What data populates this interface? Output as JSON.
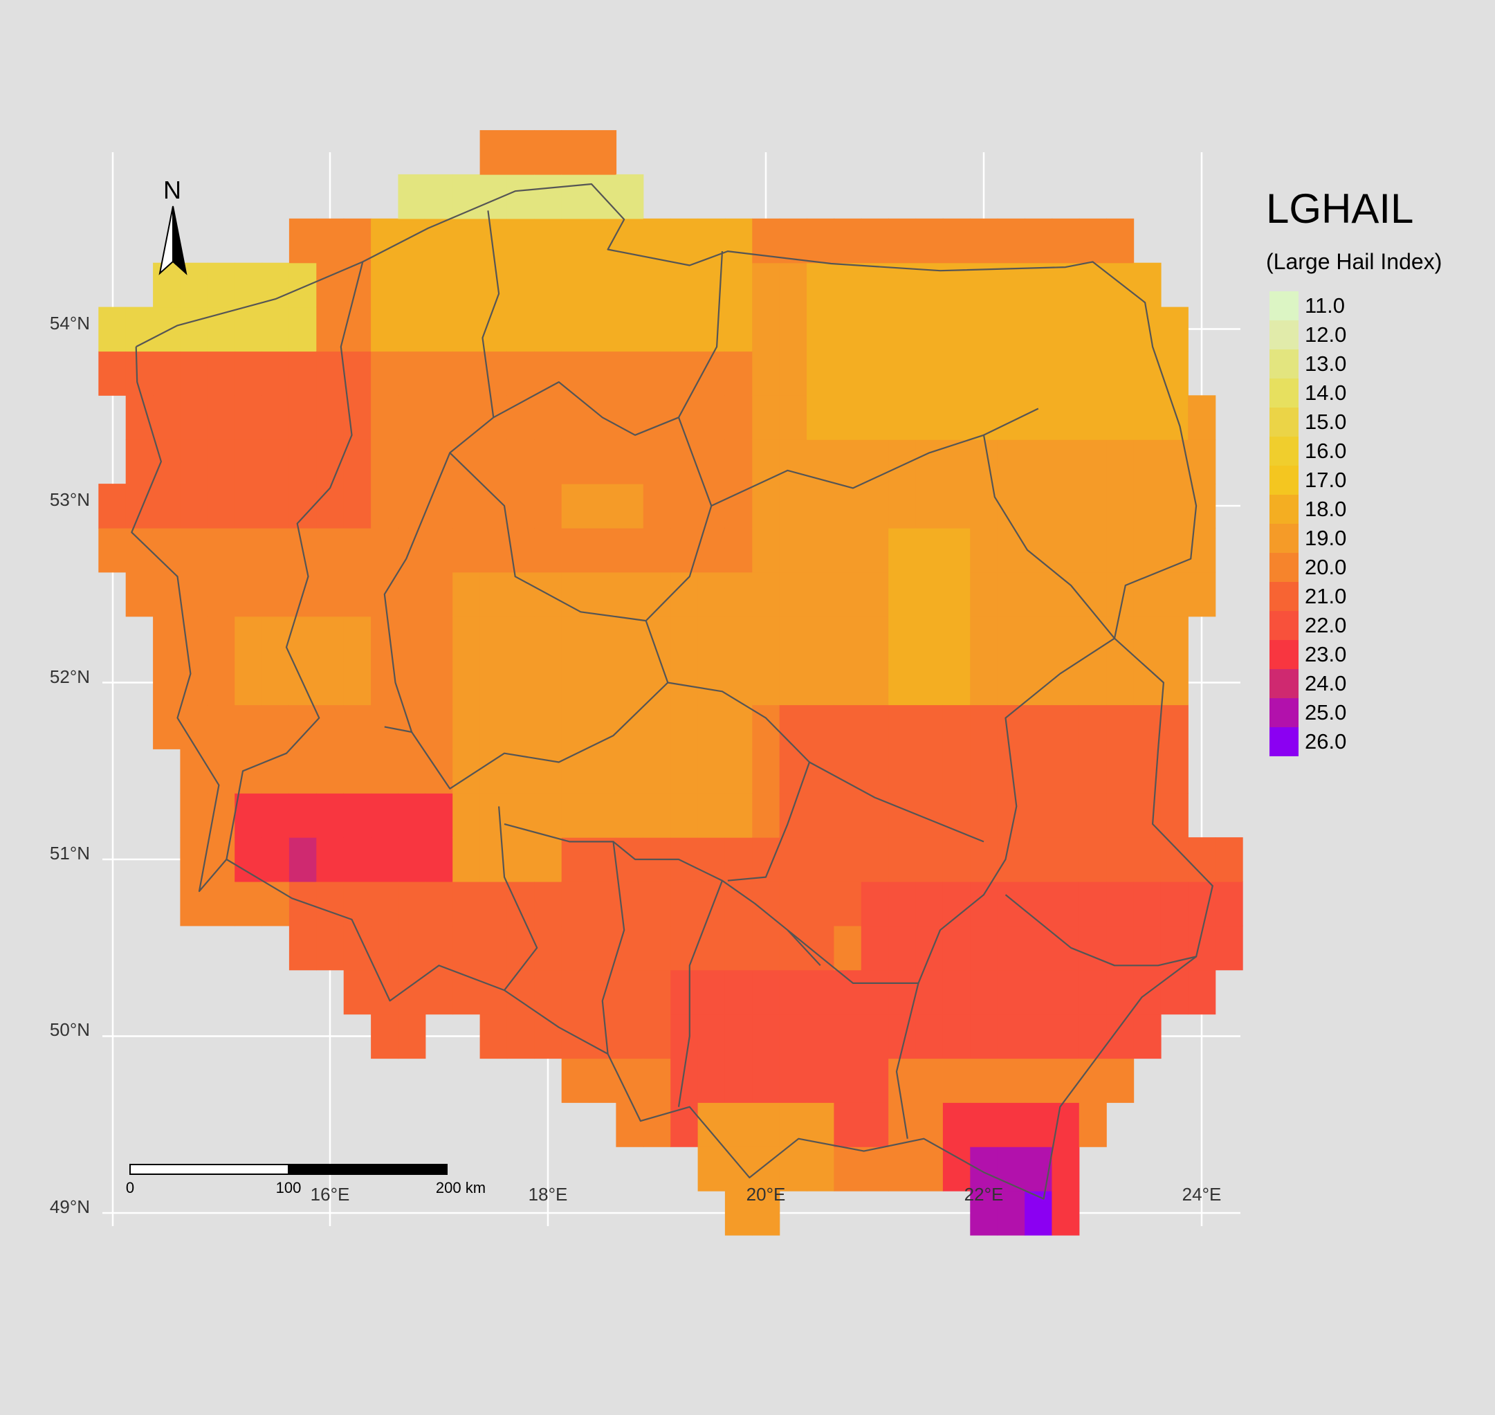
{
  "map": {
    "type": "raster-grid-map",
    "region": "Poland",
    "lon_range": [
      14.0,
      24.3
    ],
    "lat_range": [
      49.0,
      54.9
    ],
    "cell_size_deg": {
      "lon": 0.25,
      "lat": 0.25
    },
    "gridlines": true,
    "background_color": "#e0e0e0",
    "x_ticks": [
      "16°E",
      "18°E",
      "20°E",
      "22°E",
      "24°E"
    ],
    "y_ticks": [
      "54°N",
      "53°N",
      "52°N",
      "51°N",
      "50°N",
      "49°N"
    ],
    "north_arrow": {
      "label": "N"
    },
    "scale_bar": {
      "labels": [
        "0",
        "100",
        "200 km"
      ]
    },
    "legend": {
      "title": "LGHAIL",
      "subtitle": "(Large Hail Index)",
      "placement": "right",
      "entries": [
        {
          "label": "11.0",
          "color": "#dcf5c4"
        },
        {
          "label": "12.0",
          "color": "#e1ebaa"
        },
        {
          "label": "13.0",
          "color": "#e3e57f"
        },
        {
          "label": "14.0",
          "color": "#e7e05f"
        },
        {
          "label": "15.0",
          "color": "#ebd447"
        },
        {
          "label": "16.0",
          "color": "#f0ce2d"
        },
        {
          "label": "17.0",
          "color": "#f4c620"
        },
        {
          "label": "18.0",
          "color": "#f4ae22"
        },
        {
          "label": "19.0",
          "color": "#f59b28"
        },
        {
          "label": "20.0",
          "color": "#f6842c"
        },
        {
          "label": "21.0",
          "color": "#f76433"
        },
        {
          "label": "22.0",
          "color": "#f8513b"
        },
        {
          "label": "23.0",
          "color": "#f83640"
        },
        {
          "label": "24.0",
          "color": "#cf2970"
        },
        {
          "label": "25.0",
          "color": "#b211ac"
        },
        {
          "label": "26.0",
          "color": "#8b00f2"
        }
      ]
    },
    "region_fields": [
      {
        "lon": [
          14.0,
          16.0
        ],
        "lat": [
          54.0,
          54.5
        ],
        "value": 14.5
      },
      {
        "lon": [
          14.0,
          16.4
        ],
        "lat": [
          53.0,
          54.0
        ],
        "value": 21.2
      },
      {
        "lon": [
          14.1,
          16.4
        ],
        "lat": [
          51.0,
          53.0
        ],
        "value": 20.0
      },
      {
        "lon": [
          15.2,
          16.5
        ],
        "lat": [
          52.0,
          52.4
        ],
        "value": 19.0
      },
      {
        "lon": [
          15.2,
          17.5
        ],
        "lat": [
          50.9,
          51.3
        ],
        "value": 22.5
      },
      {
        "lon": [
          15.6,
          15.9
        ],
        "lat": [
          50.9,
          51.2
        ],
        "value": 24.0
      },
      {
        "lon": [
          15.6,
          18.6
        ],
        "lat": [
          50.0,
          51.0
        ],
        "value": 21.0
      },
      {
        "lon": [
          16.4,
          19.0
        ],
        "lat": [
          52.0,
          54.0
        ],
        "value": 20.0
      },
      {
        "lon": [
          17.8,
          19.2
        ],
        "lat": [
          52.0,
          53.8
        ],
        "value": 20.4
      },
      {
        "lon": [
          18.2,
          19.0
        ],
        "lat": [
          52.9,
          53.2
        ],
        "value": 19.0
      },
      {
        "lon": [
          16.5,
          20.0
        ],
        "lat": [
          54.0,
          54.8
        ],
        "value": 17.5
      },
      {
        "lon": [
          16.5,
          19.0
        ],
        "lat": [
          54.6,
          54.9
        ],
        "value": 12.8
      },
      {
        "lon": [
          17.2,
          19.8
        ],
        "lat": [
          51.0,
          52.6
        ],
        "value": 19.2
      },
      {
        "lon": [
          18.2,
          20.6
        ],
        "lat": [
          50.0,
          51.2
        ],
        "value": 20.6
      },
      {
        "lon": [
          19.2,
          21.2
        ],
        "lat": [
          49.3,
          50.3
        ],
        "value": 21.8
      },
      {
        "lon": [
          19.4,
          20.6
        ],
        "lat": [
          49.0,
          49.6
        ],
        "value": 18.5
      },
      {
        "lon": [
          19.8,
          24.3
        ],
        "lat": [
          52.0,
          54.5
        ],
        "value": 18.9
      },
      {
        "lon": [
          21.2,
          21.8
        ],
        "lat": [
          52.0,
          52.9
        ],
        "value": 18.0
      },
      {
        "lon": [
          20.5,
          23.9
        ],
        "lat": [
          53.3,
          54.5
        ],
        "value": 18.0
      },
      {
        "lon": [
          20.2,
          24.3
        ],
        "lat": [
          50.6,
          51.8
        ],
        "value": 20.6
      },
      {
        "lon": [
          21.0,
          24.3
        ],
        "lat": [
          50.0,
          50.9
        ],
        "value": 22.0
      },
      {
        "lon": [
          21.6,
          23.0
        ],
        "lat": [
          49.0,
          49.7
        ],
        "value": 23.4
      },
      {
        "lon": [
          21.8,
          22.6
        ],
        "lat": [
          49.0,
          49.4
        ],
        "value": 25.0
      },
      {
        "lon": [
          22.4,
          22.7
        ],
        "lat": [
          49.0,
          49.2
        ],
        "value": 26.0
      }
    ]
  }
}
